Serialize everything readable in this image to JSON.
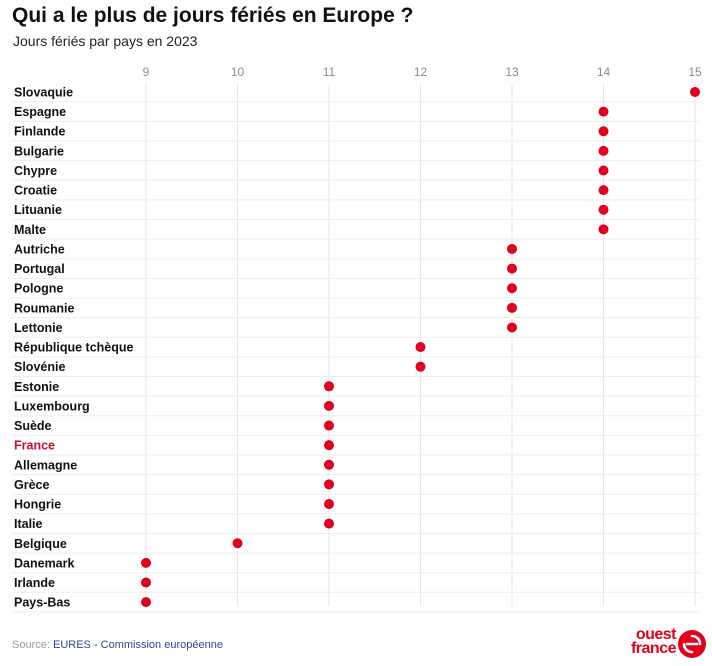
{
  "header": {
    "title": "Qui a le plus de jours fériés en Europe ?",
    "subtitle": "Jours fériés par pays en 2023"
  },
  "chart_data": {
    "type": "scatter",
    "title": "Qui a le plus de jours fériés en Europe ?",
    "subtitle": "Jours fériés par pays en 2023",
    "xlim": [
      9,
      15
    ],
    "xticks": [
      9,
      10,
      11,
      12,
      13,
      14,
      15
    ],
    "grid": true,
    "highlight": "France",
    "highlight_color": "#c8102e",
    "dot_color": "#e2001a",
    "categories": [
      "Slovaquie",
      "Espagne",
      "Finlande",
      "Bulgarie",
      "Chypre",
      "Croatie",
      "Lituanie",
      "Malte",
      "Autriche",
      "Portugal",
      "Pologne",
      "Roumanie",
      "Lettonie",
      "République tchèque",
      "Slovénie",
      "Estonie",
      "Luxembourg",
      "Suède",
      "France",
      "Allemagne",
      "Grèce",
      "Hongrie",
      "Italie",
      "Belgique",
      "Danemark",
      "Irlande",
      "Pays-Bas"
    ],
    "values": [
      15,
      14,
      14,
      14,
      14,
      14,
      14,
      14,
      13,
      13,
      13,
      13,
      13,
      12,
      12,
      11,
      11,
      11,
      11,
      11,
      11,
      11,
      11,
      10,
      9,
      9,
      9
    ]
  },
  "footer": {
    "source_label": "Source:",
    "source_text": "EURES - Commission européenne"
  },
  "logo": {
    "line1": "ouest",
    "line2": "france",
    "color": "#e2001a"
  }
}
